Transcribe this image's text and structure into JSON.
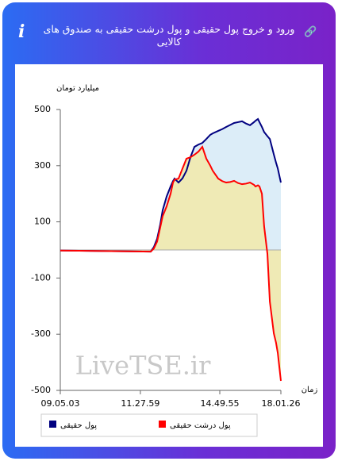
{
  "chart_data": {
    "type": "line",
    "title": "ورود و خروج پول حقیقی و پول درشت حقیقی به صندوق های کالایی",
    "y_label": "میلیارد تومان",
    "x_label": "زمان",
    "watermark": "LiveTSE.ir",
    "x": [
      0,
      8.6,
      19.4,
      30.2,
      41.0,
      42.4,
      43.9,
      45.3,
      46.4,
      48.2,
      50.0,
      51.1,
      51.8,
      53.6,
      55.4,
      57.2,
      59.0,
      60.8,
      62.6,
      64.4,
      66.2,
      68.0,
      69.1,
      71.6,
      73.4,
      75.2,
      77.0,
      78.8,
      80.6,
      82.4,
      84.2,
      86.0,
      87.8,
      88.5,
      89.6,
      90.3,
      91.4,
      92.4,
      93.9,
      95.0,
      96.8,
      97.8,
      98.6,
      100
    ],
    "series": [
      {
        "name": "پول حقیقی",
        "color": "#000080",
        "fill": "#dcedf8",
        "values": [
          -2,
          -3,
          -4,
          -5,
          -6,
          10,
          40,
          90,
          141,
          190,
          226,
          245,
          254,
          240,
          255,
          282,
          330,
          367,
          375,
          381,
          395,
          410,
          415,
          424,
          430,
          438,
          445,
          452,
          455,
          458,
          450,
          444,
          455,
          460,
          466,
          455,
          438,
          420,
          405,
          395,
          340,
          311,
          290,
          240
        ]
      },
      {
        "name": "پول درشت حقیقی",
        "color": "#ff0000",
        "fill": "#efeab5",
        "values": [
          -2,
          -3,
          -4,
          -5,
          -6,
          5,
          30,
          80,
          120,
          155,
          200,
          240,
          250,
          254,
          290,
          325,
          330,
          339,
          350,
          367,
          325,
          300,
          282,
          254,
          245,
          240,
          242,
          246,
          238,
          234,
          236,
          240,
          232,
          226,
          230,
          226,
          200,
          85,
          -14,
          -184,
          -297,
          -330,
          -367,
          -466
        ]
      }
    ],
    "xlim": [
      0,
      100
    ],
    "xticks": [
      {
        "value": 0,
        "label": "09.05.03"
      },
      {
        "value": 36.3,
        "label": "11.27.59"
      },
      {
        "value": 72.3,
        "label": "14.49.55"
      },
      {
        "value": 100,
        "label": "18.01.26"
      }
    ],
    "ylim": [
      -500,
      500
    ],
    "yticks": [
      -500,
      -300,
      -100,
      100,
      300,
      500
    ]
  }
}
